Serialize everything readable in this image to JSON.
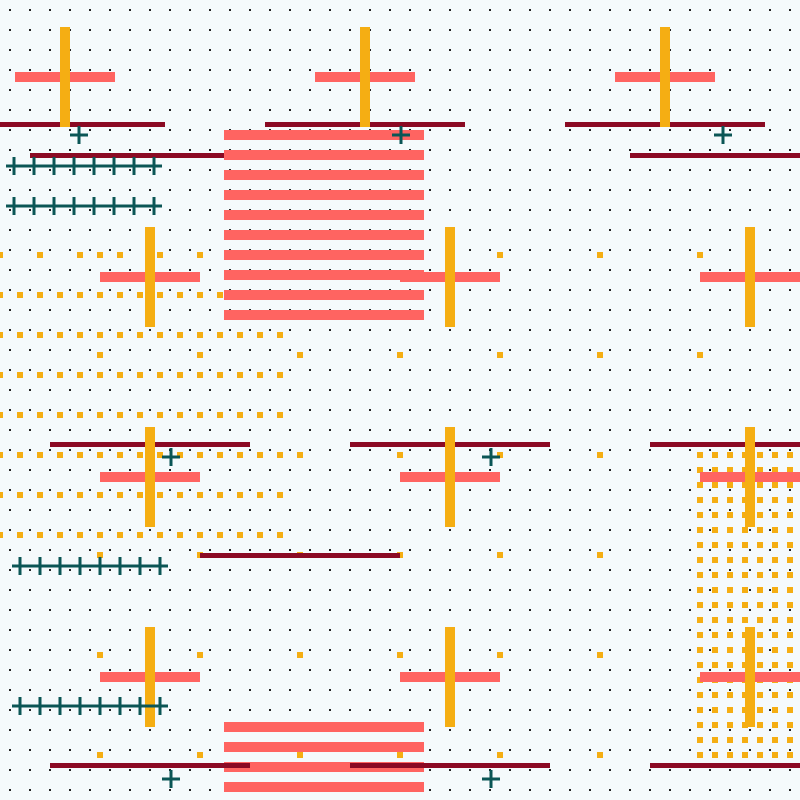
{
  "colors": {
    "background": "#f5fafc",
    "dot": "#222222",
    "yellow": "#f5ae13",
    "coral": "#ff6461",
    "maroon": "#8b0a24",
    "teal": "#0b5656"
  },
  "icons": [
    "plus-icon",
    "cross-icon"
  ]
}
